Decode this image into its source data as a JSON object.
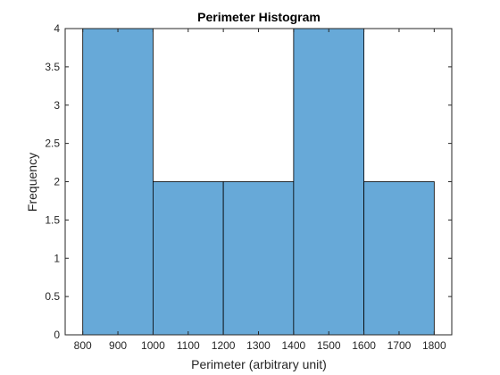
{
  "chart_data": {
    "type": "bar",
    "title": "Perimeter Histogram",
    "xlabel": "Perimeter (arbitrary unit)",
    "ylabel": "Frequency",
    "bins": [
      {
        "start": 800,
        "end": 1000,
        "count": 4
      },
      {
        "start": 1000,
        "end": 1200,
        "count": 2
      },
      {
        "start": 1200,
        "end": 1400,
        "count": 2
      },
      {
        "start": 1400,
        "end": 1600,
        "count": 4
      },
      {
        "start": 1600,
        "end": 1800,
        "count": 2
      }
    ],
    "xlim": [
      750,
      1850
    ],
    "ylim": [
      0,
      4
    ],
    "xticks": [
      800,
      900,
      1000,
      1100,
      1200,
      1300,
      1400,
      1500,
      1600,
      1700,
      1800
    ],
    "yticks": [
      0,
      0.5,
      1,
      1.5,
      2,
      2.5,
      3,
      3.5,
      4
    ],
    "bar_color": "#67a9d8",
    "edge_color": "#000000",
    "axis_color": "#262626",
    "grid": false
  }
}
